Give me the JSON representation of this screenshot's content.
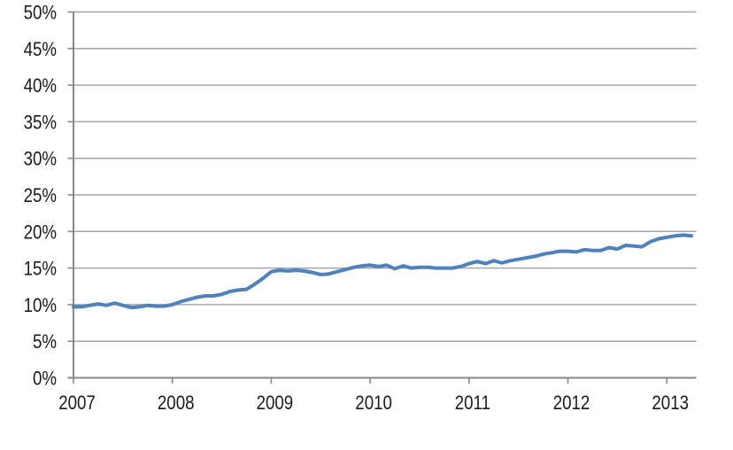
{
  "chart_data": {
    "type": "line",
    "title": "",
    "legend": "none",
    "grid": "horizontal",
    "frequency": "monthly",
    "x_start": "2007-01",
    "x_end": "2013-04",
    "x_tick_labels": [
      "2007",
      "2008",
      "2009",
      "2010",
      "2011",
      "2012",
      "2013"
    ],
    "y_tick_labels": [
      "0%",
      "5%",
      "10%",
      "15%",
      "20%",
      "25%",
      "30%",
      "35%",
      "40%",
      "45%",
      "50%"
    ],
    "ylim": [
      0,
      50
    ],
    "y_step": 5,
    "series": [
      {
        "name": "",
        "unit": "percent",
        "values": [
          9.7,
          9.7,
          9.9,
          10.1,
          9.9,
          10.2,
          9.9,
          9.6,
          9.7,
          9.9,
          9.8,
          9.8,
          10.0,
          10.4,
          10.7,
          11.0,
          11.2,
          11.2,
          11.4,
          11.8,
          12.0,
          12.1,
          12.8,
          13.6,
          14.5,
          14.7,
          14.6,
          14.7,
          14.6,
          14.4,
          14.1,
          14.2,
          14.5,
          14.8,
          15.1,
          15.3,
          15.4,
          15.2,
          15.4,
          14.9,
          15.3,
          15.0,
          15.1,
          15.1,
          15.0,
          15.0,
          15.0,
          15.2,
          15.6,
          15.9,
          15.6,
          16.0,
          15.7,
          16.0,
          16.2,
          16.4,
          16.6,
          16.9,
          17.1,
          17.3,
          17.3,
          17.2,
          17.5,
          17.4,
          17.4,
          17.8,
          17.6,
          18.1,
          18.0,
          17.9,
          18.6,
          19.0,
          19.2,
          19.4,
          19.5,
          19.4
        ]
      }
    ],
    "colors": {
      "line": "#4F81BD",
      "gridline": "#A6A6A6",
      "axis": "#898989",
      "label": "#1A1A1A",
      "background": "#FFFFFF"
    }
  }
}
